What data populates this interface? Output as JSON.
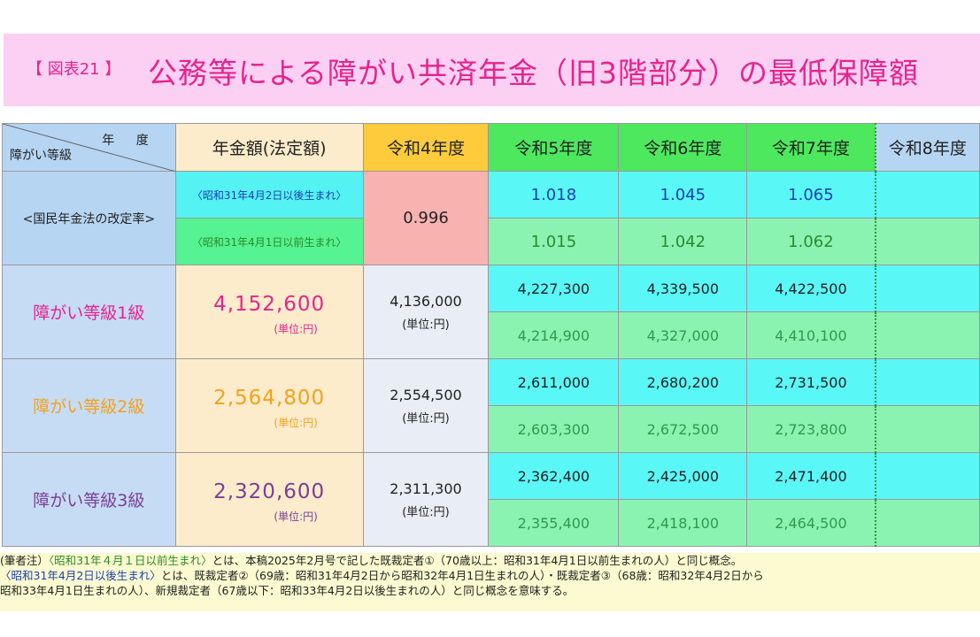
{
  "header": {
    "tag": "【 図表21 】",
    "title": "公務等による障がい共済年金（旧3階部分）の最低保障額"
  },
  "table": {
    "corner_year": "年 度",
    "corner_grade": "障がい等級",
    "col_pension": "年金額(法定額)",
    "years": [
      "令和4年度",
      "令和5年度",
      "令和6年度",
      "令和7年度",
      "令和8年度"
    ],
    "rate_row": {
      "label": "<国民年金法の改定率>",
      "sub_after": "〈昭和31年4月2日以後生まれ〉",
      "sub_before": "〈昭和31年4月1日以前生まれ〉",
      "r4": "0.996",
      "after": [
        "1.018",
        "1.045",
        "1.065"
      ],
      "before": [
        "1.015",
        "1.042",
        "1.062"
      ]
    },
    "grades": [
      {
        "label": "障がい等級1級",
        "pension": "4,152,600",
        "unit": "(単位:円)",
        "r4": "4,136,000",
        "r4unit": "(単位:円)",
        "after": [
          "4,227,300",
          "4,339,500",
          "4,422,500"
        ],
        "before": [
          "4,214,900",
          "4,327,000",
          "4,410,100"
        ]
      },
      {
        "label": "障がい等級2級",
        "pension": "2,564,800",
        "unit": "(単位:円)",
        "r4": "2,554,500",
        "r4unit": "(単位:円)",
        "after": [
          "2,611,000",
          "2,680,200",
          "2,731,500"
        ],
        "before": [
          "2,603,300",
          "2,672,500",
          "2,723,800"
        ]
      },
      {
        "label": "障がい等級3級",
        "pension": "2,320,600",
        "unit": "(単位:円)",
        "r4": "2,311,300",
        "r4unit": "(単位:円)",
        "after": [
          "2,362,400",
          "2,425,000",
          "2,471,400"
        ],
        "before": [
          "2,355,400",
          "2,418,100",
          "2,464,500"
        ]
      }
    ]
  },
  "note": {
    "l1a": "(筆者注）",
    "l1b": "〈昭和31年４月１日以前生まれ〉",
    "l1c": "とは、本稿2025年2月号で記した既裁定者①（70歳以上：昭和31年4月1日以前生まれの人）と同じ概念。",
    "l2a": "〈昭和31年4月2日以後生まれ〉",
    "l2b": "とは、既裁定者②（69歳：昭和31年4月2日から昭和32年4月1日生まれの人）・既裁定者③（68歳：昭和32年4月2日から",
    "l3": "昭和33年4月1日生まれの人）、新規裁定者（67歳以下：昭和33年4月2日以後生まれの人）と同じ概念を意味する。"
  }
}
